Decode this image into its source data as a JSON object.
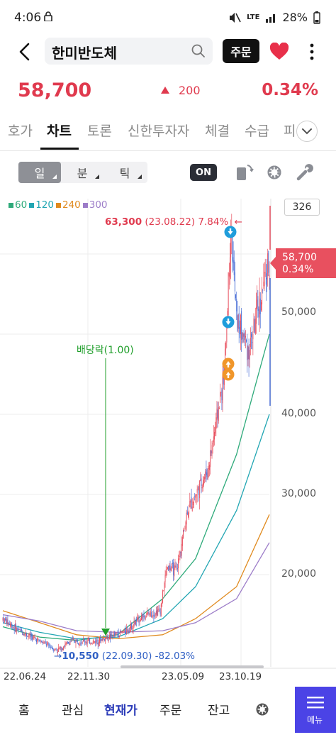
{
  "status_bar": {
    "time": "4:06",
    "battery": "28%",
    "network": "LTE"
  },
  "header": {
    "title": "한미반도체",
    "order_label": "주문"
  },
  "quote": {
    "price": "58,700",
    "change": "200",
    "change_rate": "0.34%"
  },
  "tabs": [
    {
      "label": "호가"
    },
    {
      "label": "차트"
    },
    {
      "label": "토론"
    },
    {
      "label": "신한투자자"
    },
    {
      "label": "체결"
    },
    {
      "label": "수급"
    },
    {
      "label": "피"
    }
  ],
  "active_tab": "차트",
  "toolbar": {
    "periods": [
      "일",
      "분",
      "틱"
    ],
    "active_period": "일",
    "on_label": "ON"
  },
  "chart": {
    "legend": [
      {
        "label": "60",
        "color": "#2eaa7a"
      },
      {
        "label": "120",
        "color": "#22a6b3"
      },
      {
        "label": "240",
        "color": "#e08a1e"
      },
      {
        "label": "300",
        "color": "#9c7cc8"
      }
    ],
    "candle_count": "326",
    "current_price_tag": {
      "price": "58,700",
      "rate": "0.34%"
    },
    "high_annotation": {
      "price": "63,300",
      "detail": "(23.08.22) 7.84%",
      "arrow": "←"
    },
    "low_annotation": {
      "arrow": "→",
      "price": "10,550",
      "detail": "(22.09.30) -82.03%"
    },
    "dividend_label": "배당락(1.00)",
    "y_ticks": [
      "50,000",
      "40,000",
      "30,000",
      "20,000"
    ],
    "x_ticks": [
      "22.06.24",
      "22.11.30",
      "23.05.09",
      "23.10.19"
    ]
  },
  "chart_data": {
    "type": "candlestick",
    "ylim": [
      4000,
      66000
    ],
    "y_ticks": [
      20000,
      30000,
      40000,
      50000
    ],
    "x_ticks": [
      "22.06.24",
      "22.11.30",
      "23.05.09",
      "23.10.19"
    ],
    "close_path": [
      [
        "22.06.24",
        14500
      ],
      [
        "22.07",
        13200
      ],
      [
        "22.08",
        12300
      ],
      [
        "22.09.30",
        10550
      ],
      [
        "22.10",
        11800
      ],
      [
        "22.11.30",
        11600
      ],
      [
        "22.12",
        12200
      ],
      [
        "23.01",
        13000
      ],
      [
        "23.02",
        14800
      ],
      [
        "23.03",
        15500
      ],
      [
        "23.04",
        21000
      ],
      [
        "23.05.09",
        20500
      ],
      [
        "23.05",
        28000
      ],
      [
        "23.06",
        33000
      ],
      [
        "23.07",
        45000
      ],
      [
        "23.08.22",
        63300
      ],
      [
        "23.09",
        52000
      ],
      [
        "23.10.19",
        48000
      ],
      [
        "23.11",
        56000
      ],
      [
        "current",
        58700
      ]
    ],
    "moving_averages": [
      {
        "name": "60",
        "values": [
          13500,
          12200,
          11800,
          12500,
          17000,
          22000,
          35000,
          50000
        ]
      },
      {
        "name": "120",
        "values": [
          14000,
          12800,
          12000,
          12200,
          14500,
          18500,
          28000,
          40000
        ]
      },
      {
        "name": "240",
        "values": [
          15500,
          14000,
          12500,
          12000,
          12500,
          14500,
          18500,
          27500
        ]
      },
      {
        "name": "300",
        "values": [
          15000,
          14200,
          13000,
          12800,
          13000,
          14000,
          17000,
          24000
        ]
      }
    ]
  },
  "bottom_nav": {
    "items": [
      "홈",
      "관심",
      "현재가",
      "주문",
      "잔고"
    ],
    "active": "현재가",
    "menu_label": "메뉴"
  }
}
